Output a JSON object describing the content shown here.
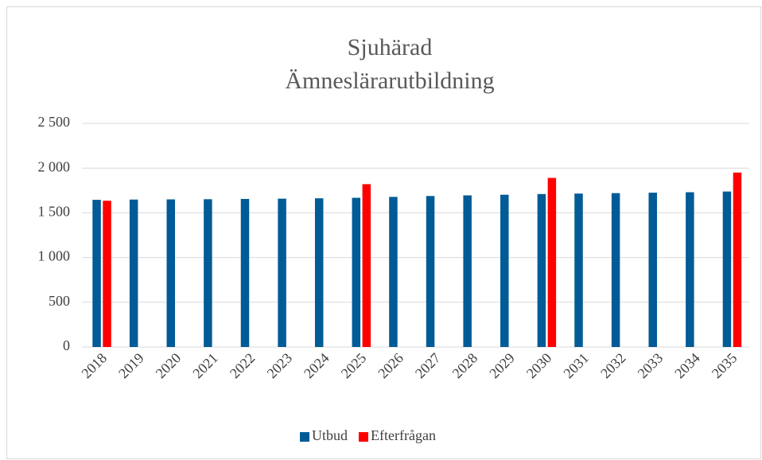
{
  "chart_data": {
    "type": "bar",
    "title": "Sjuhärad",
    "subtitle": "Ämneslärarutbildning",
    "categories": [
      "2018",
      "2019",
      "2020",
      "2021",
      "2022",
      "2023",
      "2024",
      "2025",
      "2026",
      "2027",
      "2028",
      "2029",
      "2030",
      "2031",
      "2032",
      "2033",
      "2034",
      "2035"
    ],
    "series": [
      {
        "name": "Utbud",
        "color": "#005b96",
        "values": [
          1645,
          1648,
          1650,
          1652,
          1655,
          1658,
          1662,
          1668,
          1678,
          1688,
          1695,
          1702,
          1710,
          1715,
          1720,
          1725,
          1730,
          1738
        ]
      },
      {
        "name": "Efterfrågan",
        "color": "#ff0000",
        "values": [
          1635,
          null,
          null,
          null,
          null,
          null,
          null,
          1820,
          null,
          null,
          null,
          null,
          1890,
          null,
          null,
          null,
          null,
          1950
        ]
      }
    ],
    "ylim": [
      0,
      2500
    ],
    "yticks": [
      0,
      500,
      {
        "value": 1000,
        "label": "1 000"
      },
      {
        "value": 1500,
        "label": "1 500"
      },
      {
        "value": 2000,
        "label": "2 000"
      },
      {
        "value": 2500,
        "label": "2 500"
      }
    ],
    "grid": true,
    "legend": "bottom"
  }
}
